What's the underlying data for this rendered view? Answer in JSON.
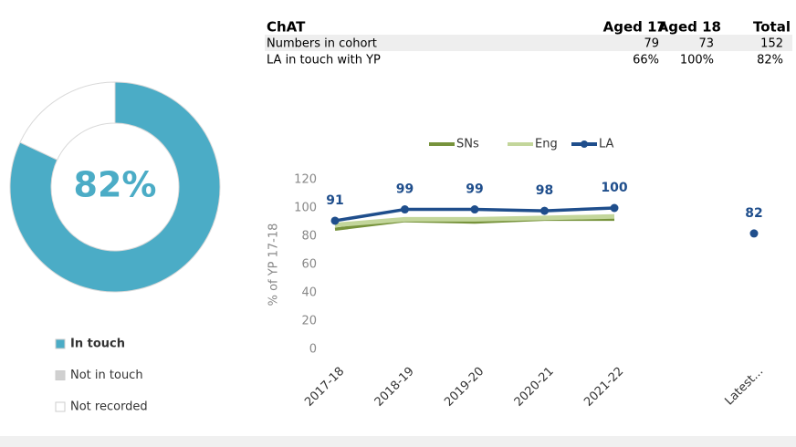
{
  "table": {
    "header": [
      "ChAT",
      "Aged 17",
      "Aged 18",
      "Total"
    ],
    "rows": [
      [
        "Numbers in cohort",
        "79",
        "73",
        "152"
      ],
      [
        "LA in touch with YP",
        "66%",
        "100%",
        "82%"
      ]
    ]
  },
  "chart_data": [
    {
      "type": "donut",
      "categories": [
        "In touch",
        "Not in touch",
        "Not recorded"
      ],
      "values": [
        82,
        0,
        18
      ],
      "value_labels": [
        "82%",
        null,
        null
      ],
      "colors": [
        "#4bacc6",
        "#d0d0d0",
        "#ffffff"
      ]
    },
    {
      "type": "line",
      "ylabel": "% of YP 17-18",
      "categories": [
        "2017-18",
        "2018-19",
        "2019-20",
        "2020-21",
        "2021-22",
        null,
        "Latest..."
      ],
      "series": [
        {
          "name": "SNs",
          "color": "#77933c",
          "values": [
            85,
            91,
            90,
            92,
            92,
            null,
            null
          ]
        },
        {
          "name": "Eng",
          "color": "#c3d69b",
          "values": [
            88,
            92,
            92,
            93,
            94,
            null,
            null
          ]
        },
        {
          "name": "LA",
          "color": "#1f4e8c",
          "values": [
            91,
            99,
            99,
            98,
            100,
            null,
            82
          ],
          "markers": true,
          "show_values": true
        }
      ],
      "ylim": [
        0,
        120
      ],
      "yticks": [
        0,
        20,
        40,
        60,
        80,
        100,
        120
      ],
      "grid": false,
      "legend": "top"
    }
  ]
}
